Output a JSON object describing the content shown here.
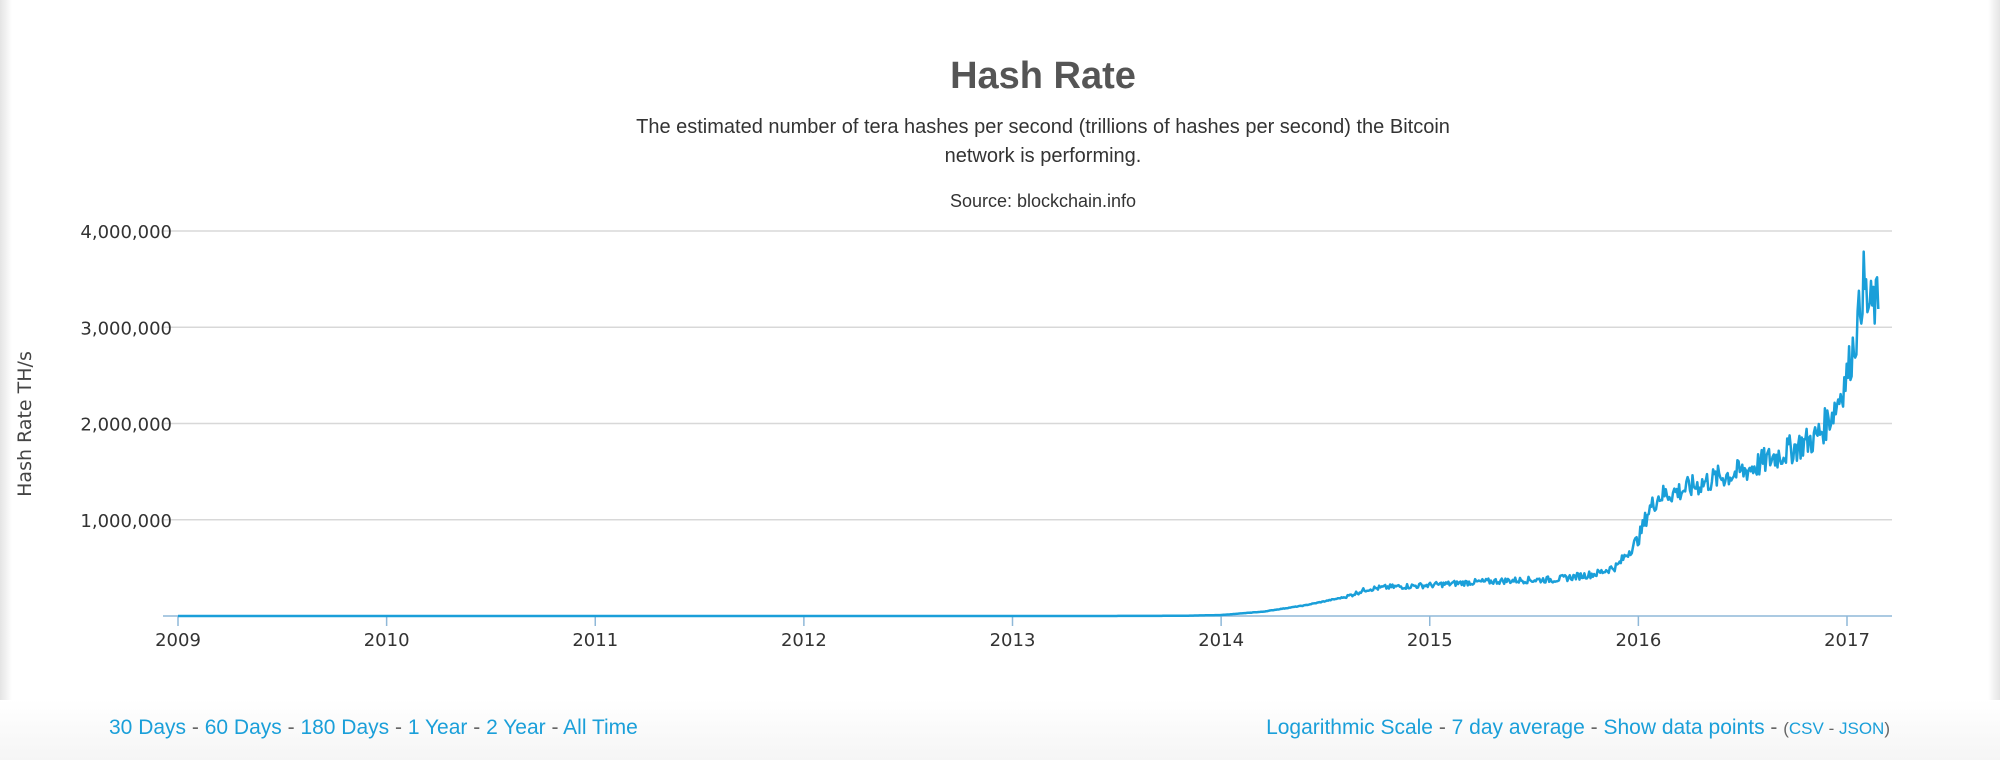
{
  "chart_data": {
    "type": "line",
    "title": "Hash Rate",
    "subtitle_lines": [
      "The estimated number of tera hashes per second (trillions of hashes per second) the Bitcoin",
      "network is performing."
    ],
    "source": "Source: blockchain.info",
    "ylabel": "Hash Rate TH/s",
    "xlabel": "",
    "ylim": [
      0,
      4000000
    ],
    "yticks": [
      1000000,
      2000000,
      3000000,
      4000000
    ],
    "ytick_labels": [
      "1,000,000",
      "2,000,000",
      "3,000,000",
      "4,000,000"
    ],
    "xlim": [
      2009.0,
      2017.2
    ],
    "xticks": [
      2009,
      2010,
      2011,
      2012,
      2013,
      2014,
      2015,
      2016,
      2017
    ],
    "xtick_labels": [
      "2009",
      "2010",
      "2011",
      "2012",
      "2013",
      "2014",
      "2015",
      "2016",
      "2017"
    ],
    "grid": true,
    "legend": false,
    "series_color": "#1a9fd9",
    "series": [
      {
        "x": [
          2009.0,
          2010.0,
          2011.0,
          2012.0,
          2013.0,
          2013.5,
          2013.8,
          2014.0,
          2014.2,
          2014.4,
          2014.6,
          2014.7,
          2014.8,
          2015.0,
          2015.2,
          2015.4,
          2015.6,
          2015.8,
          2015.9,
          2016.0,
          2016.05,
          2016.1,
          2016.2,
          2016.4,
          2016.5,
          2016.6,
          2016.7,
          2016.8,
          2016.85,
          2016.9,
          2016.95,
          2017.0,
          2017.05,
          2017.08,
          2017.1,
          2017.15
        ],
        "y": [
          0,
          0,
          0,
          0,
          0,
          500,
          2000,
          10000,
          45000,
          110000,
          200000,
          280000,
          300000,
          320000,
          350000,
          370000,
          380000,
          440000,
          520000,
          800000,
          1100000,
          1250000,
          1300000,
          1450000,
          1500000,
          1600000,
          1700000,
          1800000,
          1850000,
          2000000,
          2200000,
          2500000,
          3000000,
          3500000,
          3200000,
          3250000
        ]
      }
    ]
  },
  "controls": {
    "left": [
      "30 Days",
      "60 Days",
      "180 Days",
      "1 Year",
      "2 Year",
      "All Time"
    ],
    "sep": " - ",
    "right": {
      "log_scale": "Logarithmic Scale",
      "avg": "7 day average",
      "show_points": "Show data points",
      "paren_open": "(",
      "csv": "CSV",
      "json": "JSON",
      "paren_close": ")"
    }
  }
}
